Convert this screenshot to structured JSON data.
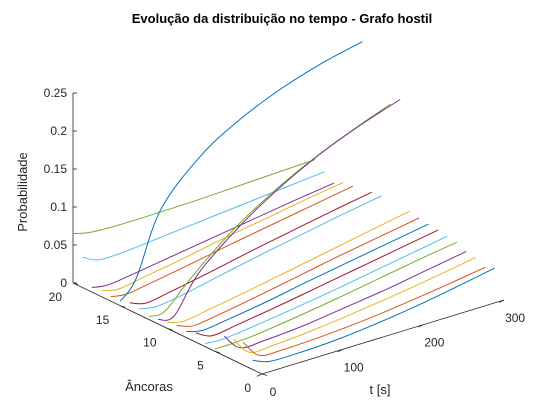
{
  "chart_data": {
    "type": "line",
    "view": "3d",
    "title": "Evolução da distribuição no tempo - Grafo hostil",
    "xlabel": "t [s]",
    "ylabel": "Âncoras",
    "zlabel": "Probabilidade",
    "xlim": [
      0,
      300
    ],
    "ylim": [
      0,
      20
    ],
    "zlim": [
      0,
      0.25
    ],
    "xticks": [
      "0",
      "100",
      "200",
      "300"
    ],
    "yticks": [
      "0",
      "5",
      "10",
      "15",
      "20"
    ],
    "zticks": [
      "0",
      "0.05",
      "0.1",
      "0.15",
      "0.2",
      "0.25"
    ],
    "grid": false,
    "series": [
      {
        "anchor": 1,
        "color": "#0072BD",
        "t": [
          0,
          20,
          50,
          100,
          150,
          200,
          250,
          300
        ],
        "p": [
          0.012,
          0.004,
          0.003,
          0.005,
          0.01,
          0.017,
          0.026,
          0.036
        ]
      },
      {
        "anchor": 2,
        "color": "#D95319",
        "t": [
          0,
          20,
          50,
          100,
          150,
          200,
          250,
          300
        ],
        "p": [
          0.03,
          0.006,
          0.004,
          0.006,
          0.01,
          0.016,
          0.023,
          0.031
        ]
      },
      {
        "anchor": 3,
        "color": "#EDB120",
        "t": [
          0,
          20,
          50,
          100,
          150,
          200,
          250,
          300
        ],
        "p": [
          0.028,
          0.004,
          0.004,
          0.008,
          0.014,
          0.021,
          0.029,
          0.038
        ]
      },
      {
        "anchor": 4,
        "color": "#7E2F8E",
        "t": [
          0,
          20,
          50,
          100,
          150,
          200,
          250,
          300
        ],
        "p": [
          0.026,
          0.004,
          0.004,
          0.008,
          0.015,
          0.022,
          0.031,
          0.04
        ]
      },
      {
        "anchor": 5,
        "color": "#77AC30",
        "t": [
          0,
          20,
          50,
          100,
          150,
          200,
          250,
          300
        ],
        "p": [
          0.003,
          0.003,
          0.005,
          0.012,
          0.02,
          0.029,
          0.038,
          0.046
        ]
      },
      {
        "anchor": 6,
        "color": "#4DBEEE",
        "t": [
          0,
          20,
          50,
          100,
          150,
          200,
          250,
          300
        ],
        "p": [
          0.004,
          0.003,
          0.006,
          0.013,
          0.021,
          0.03,
          0.039,
          0.048
        ]
      },
      {
        "anchor": 7,
        "color": "#A2142F",
        "t": [
          0,
          20,
          50,
          100,
          150,
          200,
          250,
          300
        ],
        "p": [
          0.012,
          0.002,
          0.006,
          0.014,
          0.023,
          0.032,
          0.041,
          0.05
        ]
      },
      {
        "anchor": 8,
        "color": "#0072BD",
        "t": [
          0,
          20,
          50,
          100,
          150,
          200,
          250,
          300
        ],
        "p": [
          0.008,
          0.003,
          0.007,
          0.015,
          0.025,
          0.034,
          0.043,
          0.052
        ]
      },
      {
        "anchor": 9,
        "color": "#D95319",
        "t": [
          0,
          20,
          50,
          100,
          150,
          200,
          250,
          300
        ],
        "p": [
          0.01,
          0.003,
          0.007,
          0.016,
          0.026,
          0.036,
          0.045,
          0.054
        ]
      },
      {
        "anchor": 10,
        "color": "#EDB120",
        "t": [
          0,
          20,
          50,
          100,
          150,
          200,
          250,
          300
        ],
        "p": [
          0.008,
          0.003,
          0.008,
          0.017,
          0.027,
          0.037,
          0.047,
          0.057
        ]
      },
      {
        "anchor": 11,
        "color": "#7E2F8E",
        "t": [
          0,
          20,
          50,
          100,
          150,
          200,
          250,
          300
        ],
        "p": [
          0.006,
          0.004,
          0.05,
          0.095,
          0.13,
          0.158,
          0.18,
          0.198
        ]
      },
      {
        "anchor": 12,
        "color": "#77AC30",
        "t": [
          0,
          20,
          50,
          100,
          150,
          200,
          250,
          300
        ],
        "p": [
          0.004,
          0.004,
          0.035,
          0.08,
          0.115,
          0.143,
          0.166,
          0.186
        ]
      },
      {
        "anchor": 13,
        "color": "#4DBEEE",
        "t": [
          0,
          20,
          50,
          100,
          150,
          200,
          250,
          300
        ],
        "p": [
          0.008,
          0.004,
          0.008,
          0.019,
          0.03,
          0.04,
          0.05,
          0.059
        ]
      },
      {
        "anchor": 14,
        "color": "#A2142F",
        "t": [
          0,
          20,
          50,
          100,
          150,
          200,
          250,
          300
        ],
        "p": [
          0.01,
          0.003,
          0.008,
          0.018,
          0.029,
          0.039,
          0.049,
          0.058
        ]
      },
      {
        "anchor": 15,
        "color": "#0072BD",
        "t": [
          0,
          20,
          50,
          100,
          150,
          200,
          250,
          300
        ],
        "p": [
          0.006,
          0.03,
          0.11,
          0.165,
          0.198,
          0.221,
          0.238,
          0.25
        ]
      },
      {
        "anchor": 16,
        "color": "#D95319",
        "t": [
          0,
          20,
          50,
          100,
          150,
          200,
          250,
          300
        ],
        "p": [
          0.006,
          0.003,
          0.008,
          0.017,
          0.027,
          0.036,
          0.045,
          0.054
        ]
      },
      {
        "anchor": 17,
        "color": "#EDB120",
        "t": [
          0,
          20,
          50,
          100,
          150,
          200,
          250,
          300
        ],
        "p": [
          0.008,
          0.003,
          0.008,
          0.017,
          0.027,
          0.036,
          0.045,
          0.053
        ]
      },
      {
        "anchor": 18,
        "color": "#7E2F8E",
        "t": [
          0,
          20,
          50,
          100,
          150,
          200,
          250,
          300
        ],
        "p": [
          0.006,
          0.003,
          0.007,
          0.015,
          0.023,
          0.031,
          0.039,
          0.046
        ]
      },
      {
        "anchor": 19,
        "color": "#4DBEEE",
        "t": [
          0,
          20,
          50,
          100,
          150,
          200,
          250,
          300
        ],
        "p": [
          0.04,
          0.03,
          0.03,
          0.035,
          0.04,
          0.045,
          0.05,
          0.055
        ]
      },
      {
        "anchor": 20,
        "color": "#77AC30",
        "t": [
          0,
          20,
          50,
          100,
          150,
          200,
          250,
          300
        ],
        "p": [
          0.065,
          0.06,
          0.058,
          0.058,
          0.059,
          0.061,
          0.063,
          0.065
        ]
      }
    ]
  }
}
